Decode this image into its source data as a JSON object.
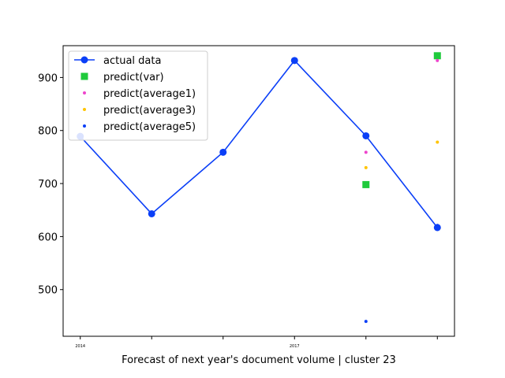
{
  "chart_data": {
    "type": "line",
    "xlabel": "Forecast of next year's document volume | cluster 23",
    "ylabel": "",
    "x": [
      2014,
      2015,
      2016,
      2017,
      2018,
      2019
    ],
    "xlim": [
      2013.76,
      2019.24
    ],
    "ylim": [
      412,
      960
    ],
    "x_tick_labels": [
      {
        "x": 2014,
        "label": "2014"
      },
      {
        "x": 2015,
        "label": ""
      },
      {
        "x": 2016,
        "label": ""
      },
      {
        "x": 2017,
        "label": "2017"
      },
      {
        "x": 2018,
        "label": ""
      },
      {
        "x": 2019,
        "label": ""
      }
    ],
    "y_ticks": [
      500,
      600,
      700,
      800,
      900
    ],
    "grid": false,
    "legend_position": "top-left",
    "series": [
      {
        "name": "actual data",
        "kind": "line",
        "marker": "circle",
        "color": "#0b3ff7",
        "points": [
          [
            2014,
            789
          ],
          [
            2015,
            643
          ],
          [
            2016,
            759
          ],
          [
            2017,
            932
          ],
          [
            2018,
            790
          ],
          [
            2019,
            617
          ]
        ]
      },
      {
        "name": "predict(var)",
        "kind": "scatter",
        "marker": "square",
        "color": "#1fca3c",
        "points": [
          [
            2018,
            698
          ],
          [
            2019,
            941
          ]
        ]
      },
      {
        "name": "predict(average1)",
        "kind": "scatter",
        "marker": "dot",
        "color": "#ee44cc",
        "points": [
          [
            2018,
            759
          ],
          [
            2019,
            932
          ]
        ]
      },
      {
        "name": "predict(average3)",
        "kind": "scatter",
        "marker": "dot",
        "color": "#ffc400",
        "points": [
          [
            2018,
            730
          ],
          [
            2019,
            778
          ]
        ]
      },
      {
        "name": "predict(average5)",
        "kind": "scatter",
        "marker": "dot",
        "color": "#0b3ff7",
        "points": [
          [
            2018,
            440
          ],
          [
            2019,
            621
          ]
        ]
      }
    ]
  }
}
